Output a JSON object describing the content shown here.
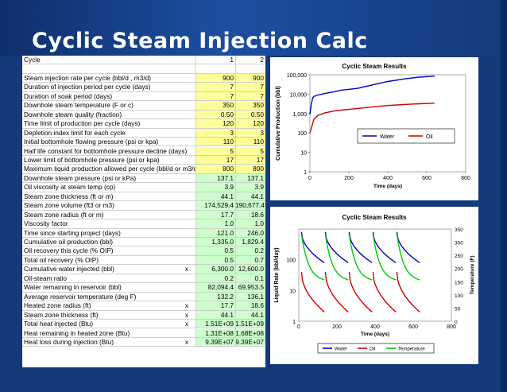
{
  "slide": {
    "title": "Cyclic  Steam Injection  Calc"
  },
  "sheet": {
    "header": {
      "label": "Cycle",
      "v1": "1",
      "v2": "2"
    },
    "input_rows": [
      {
        "label": "Steam injection rate per cycle (bbl/d , m3/d)",
        "v1": "900",
        "v2": "900"
      },
      {
        "label": "Duration of injection period per cycle (days)",
        "v1": "7",
        "v2": "7"
      },
      {
        "label": "Duration of soak period (days)",
        "v1": "7",
        "v2": "7"
      },
      {
        "label": "Downhole steam temperature (F or c)",
        "v1": "350",
        "v2": "350"
      },
      {
        "label": "Downhole steam quality (fraction)",
        "v1": "0.50",
        "v2": "0.50"
      },
      {
        "label": "Time limit of production per cycle (days)",
        "v1": "120",
        "v2": "120"
      },
      {
        "label": "Depletion index limit for each cycle",
        "v1": "3",
        "v2": "3"
      },
      {
        "label": "Initial bottomhole flowing pressure (psi or kpa)",
        "v1": "110",
        "v2": "110"
      },
      {
        "label": "Half life constant for bottomhole pressure decline (days)",
        "v1": "5",
        "v2": "5"
      },
      {
        "label": "Lower limit of bottomhole pressure (psi or kpa)",
        "v1": "17",
        "v2": "17"
      },
      {
        "label": "Maximum liquid production allowed per cycle (bbl/d or m3/d)",
        "v1": "800",
        "v2": "800"
      }
    ],
    "output_rows": [
      {
        "label": "Downhole steam pressure (psi or kPa)",
        "x": "",
        "v1": "137.1",
        "v2": "137.1"
      },
      {
        "label": "Oil viscosity at steam temp (cp)",
        "x": "",
        "v1": "3.9",
        "v2": "3.9"
      },
      {
        "label": "Steam zone thickness (ft or m)",
        "x": "",
        "v1": "44.1",
        "v2": "44.1"
      },
      {
        "label": "Steam zone volume (ft3 or m3)",
        "x": "",
        "v1": "174,529.4",
        "v2": "190,677.4"
      },
      {
        "label": "Steam zone radius (ft or m)",
        "x": "",
        "v1": "17.7",
        "v2": "18.6"
      },
      {
        "label": "Viscosity factor",
        "x": "",
        "v1": "1.0",
        "v2": "1.0"
      },
      {
        "label": "Time since starting project (days)",
        "x": "",
        "v1": "121.0",
        "v2": "246.0"
      },
      {
        "label": "Cumulative oil production (bbl)",
        "x": "",
        "v1": "1,335.0",
        "v2": "1,829.4"
      },
      {
        "label": "Oil recovery this cycle (% OIP)",
        "x": "",
        "v1": "0.5",
        "v2": "0.2"
      },
      {
        "label": "Total oil recovery (% OIP)",
        "x": "",
        "v1": "0.5",
        "v2": "0.7"
      },
      {
        "label": "Cumulative water injected (bbl)",
        "x": "x",
        "v1": "6,300.0",
        "v2": "12,600.0"
      },
      {
        "label": "Oil-steam ratio",
        "x": "",
        "v1": "0.2",
        "v2": "0.1"
      },
      {
        "label": "Water remaining in reservoir (bbl)",
        "x": "",
        "v1": "82,094.4",
        "v2": "69,953.5"
      },
      {
        "label": "Average reservoir temperature (deg F)",
        "x": "",
        "v1": "132.2",
        "v2": "136.1"
      },
      {
        "label": "Heated zone radius (ft)",
        "x": "x",
        "v1": "17.7",
        "v2": "18.6"
      },
      {
        "label": "Steam zone thickness (ft)",
        "x": "x",
        "v1": "44.1",
        "v2": "44.1"
      },
      {
        "label": "Total heat injected (Btu)",
        "x": "x",
        "v1": "1.51E+09",
        "v2": "1.51E+09"
      },
      {
        "label": "Heat remaining in heated zone (Btu)",
        "x": "",
        "v1": "1.31E+08",
        "v2": "1.68E+08"
      },
      {
        "label": "Heat loss during injection (Btu)",
        "x": "x",
        "v1": "9.39E+07",
        "v2": "9.39E+07"
      }
    ]
  },
  "chart_data": [
    {
      "type": "line",
      "title": "Cyclic Steam Results",
      "xlabel": "Time (days)",
      "ylabel": "Cumulative Production (bbl)",
      "y_scale": "log",
      "xlim": [
        0,
        800
      ],
      "ylim": [
        1,
        100000
      ],
      "x_ticks": [
        "0",
        "200",
        "400",
        "600",
        "800"
      ],
      "y_ticks": [
        "1",
        "10",
        "100",
        "1,000",
        "10,000",
        "100,000"
      ],
      "legend_position": "center-right",
      "series": [
        {
          "name": "Water",
          "color": "#0000cc",
          "x": [
            0,
            7,
            14,
            20,
            40,
            80,
            121,
            160,
            246,
            320,
            400,
            480,
            560,
            640
          ],
          "y": [
            900,
            3000,
            6300,
            7500,
            9000,
            11000,
            13000,
            16000,
            20000,
            30000,
            45000,
            60000,
            75000,
            85000
          ]
        },
        {
          "name": "Oil",
          "color": "#cc0000",
          "x": [
            0,
            14,
            20,
            40,
            80,
            121,
            160,
            246,
            320,
            400,
            480,
            560,
            640
          ],
          "y": [
            100,
            300,
            500,
            800,
            1100,
            1335,
            1500,
            1829,
            2200,
            2600,
            2900,
            3200,
            3400
          ]
        }
      ]
    },
    {
      "type": "line",
      "title": "Cyclic Steam Results",
      "xlabel": "Time (days)",
      "ylabel": "Liquid Rate (bbl/day)",
      "y2label": "Temperature (F)",
      "y_scale": "log",
      "xlim": [
        0,
        800
      ],
      "ylim": [
        1,
        1000
      ],
      "y2lim": [
        0,
        350
      ],
      "x_ticks": [
        "0",
        "200",
        "400",
        "600",
        "800"
      ],
      "y_ticks": [
        "1",
        "10",
        "100"
      ],
      "y2_ticks": [
        "0",
        "50",
        "100",
        "150",
        "200",
        "250",
        "300",
        "350"
      ],
      "legend_position": "bottom",
      "cycle_starts": [
        14,
        139,
        264,
        389,
        514
      ],
      "cycle_length": 120,
      "series": [
        {
          "name": "Water",
          "color": "#0000cc",
          "axis": "left",
          "peak": 800,
          "end": 80
        },
        {
          "name": "Oil",
          "color": "#cc0000",
          "axis": "left",
          "peak": 40,
          "end": 2
        },
        {
          "name": "Temperature",
          "color": "#00cc00",
          "axis": "right",
          "peak": 330,
          "end": 150
        }
      ]
    }
  ]
}
